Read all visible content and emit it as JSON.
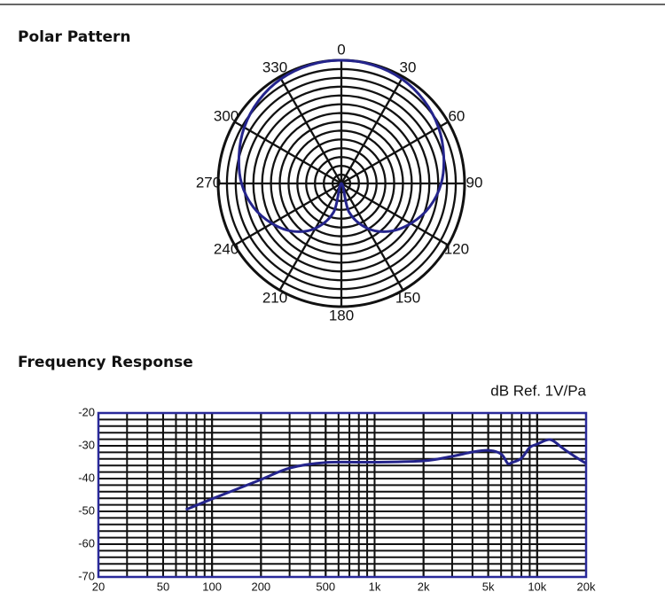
{
  "chart_data": [
    {
      "type": "polar",
      "title": "Polar Pattern",
      "theta_ticks": [
        0,
        30,
        60,
        90,
        120,
        150,
        180,
        210,
        240,
        270,
        300,
        330
      ],
      "rlim": [
        0,
        1
      ],
      "series": [
        {
          "color": "#24248c",
          "theta": [
            0,
            15,
            30,
            45,
            60,
            75,
            90,
            105,
            120,
            135,
            150,
            165,
            180,
            195,
            210,
            225,
            240,
            255,
            270,
            285,
            300,
            315,
            330,
            345
          ],
          "r": [
            1,
            0.995,
            0.98,
            0.95,
            0.91,
            0.86,
            0.81,
            0.74,
            0.65,
            0.55,
            0.42,
            0.24,
            0,
            0.24,
            0.42,
            0.55,
            0.65,
            0.74,
            0.81,
            0.86,
            0.91,
            0.95,
            0.98,
            0.995
          ]
        }
      ]
    },
    {
      "type": "line",
      "title": "Frequency Response",
      "annotation": "dB Ref.  1V/Pa",
      "log_x": true,
      "xlim": [
        20,
        20000
      ],
      "ylim": [
        -70,
        -20
      ],
      "xticks": [
        20,
        50,
        100,
        200,
        500,
        {
          "value": 1000,
          "label": "1k"
        },
        {
          "value": 2000,
          "label": "2k"
        },
        {
          "value": 5000,
          "label": "5k"
        },
        {
          "value": 10000,
          "label": "10k"
        },
        {
          "value": 20000,
          "label": "20k"
        }
      ],
      "yticks": [
        -20,
        -30,
        -40,
        -50,
        -60,
        -70
      ],
      "grid": true,
      "frame_color": "#2a2a9a",
      "series": [
        {
          "color": "#24248c",
          "x": [
            69,
            100,
            200,
            300,
            500,
            1000,
            2000,
            3000,
            4000,
            5000,
            6000,
            6600,
            7000,
            8000,
            9000,
            10000,
            12000,
            14000,
            15000,
            17000,
            20000
          ],
          "values": [
            -49.5,
            -46.2,
            -40.3,
            -36.8,
            -35.1,
            -35,
            -34.6,
            -33.2,
            -31.9,
            -31.4,
            -32.5,
            -35.4,
            -35.1,
            -33.8,
            -30.5,
            -29.5,
            -28.1,
            -30.3,
            -31.4,
            -33.2,
            -35.4
          ]
        }
      ]
    }
  ]
}
